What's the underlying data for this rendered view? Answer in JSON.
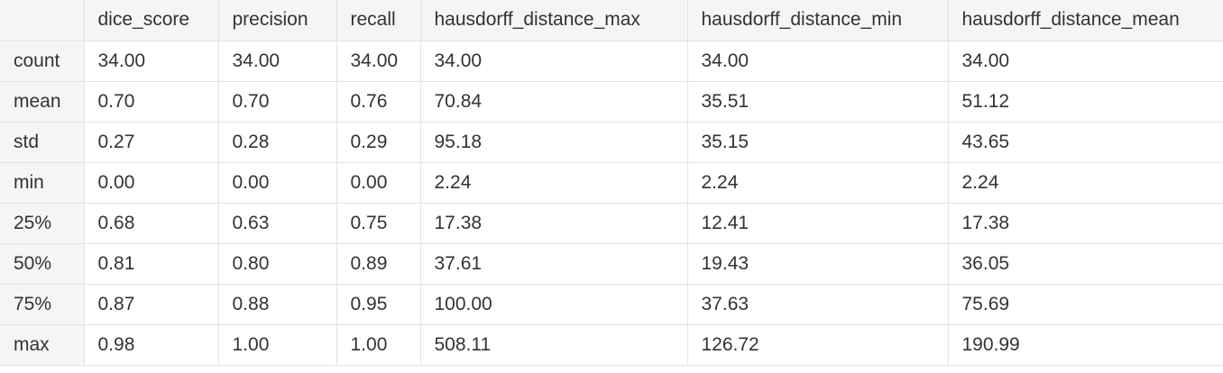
{
  "table": {
    "columns": [
      "dice_score",
      "precision",
      "recall",
      "hausdorff_distance_max",
      "hausdorff_distance_min",
      "hausdorff_distance_mean"
    ],
    "rows": [
      {
        "label": "count",
        "values": [
          "34.00",
          "34.00",
          "34.00",
          "34.00",
          "34.00",
          "34.00"
        ]
      },
      {
        "label": "mean",
        "values": [
          "0.70",
          "0.70",
          "0.76",
          "70.84",
          "35.51",
          "51.12"
        ]
      },
      {
        "label": "std",
        "values": [
          "0.27",
          "0.28",
          "0.29",
          "95.18",
          "35.15",
          "43.65"
        ]
      },
      {
        "label": "min",
        "values": [
          "0.00",
          "0.00",
          "0.00",
          "2.24",
          "2.24",
          "2.24"
        ]
      },
      {
        "label": "25%",
        "values": [
          "0.68",
          "0.63",
          "0.75",
          "17.38",
          "12.41",
          "17.38"
        ]
      },
      {
        "label": "50%",
        "values": [
          "0.81",
          "0.80",
          "0.89",
          "37.61",
          "19.43",
          "36.05"
        ]
      },
      {
        "label": "75%",
        "values": [
          "0.87",
          "0.88",
          "0.95",
          "100.00",
          "37.63",
          "75.69"
        ]
      },
      {
        "label": "max",
        "values": [
          "0.98",
          "1.00",
          "1.00",
          "508.11",
          "126.72",
          "190.99"
        ]
      }
    ]
  },
  "colors": {
    "header_background": "#f5f5f5",
    "cell_background": "#ffffff",
    "border": "#e3e3e3",
    "text": "#333333"
  }
}
